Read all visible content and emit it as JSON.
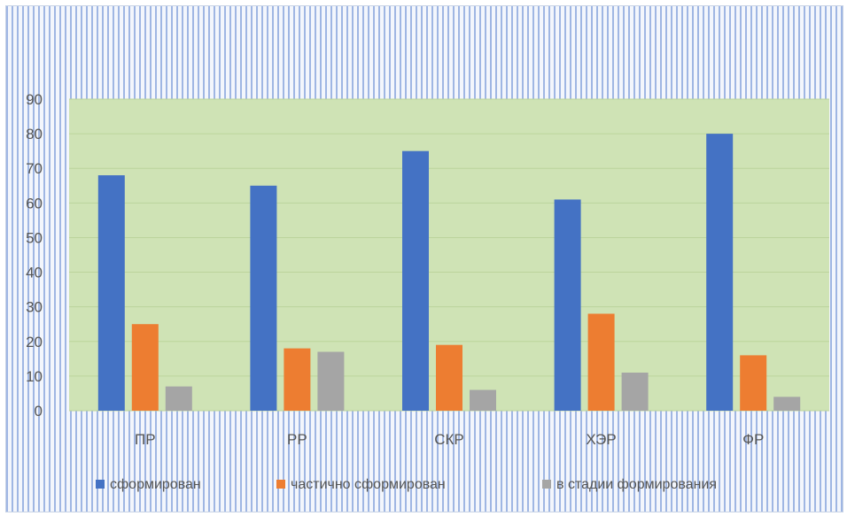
{
  "chart_data": {
    "type": "bar",
    "categories": [
      "ПР",
      "РР",
      "СКР",
      "ХЭР",
      "ФР"
    ],
    "series": [
      {
        "name": "сформирован",
        "values": [
          68,
          65,
          75,
          61,
          80
        ],
        "color": "#4472c4"
      },
      {
        "name": "частично сформирован",
        "values": [
          25,
          18,
          19,
          28,
          16
        ],
        "color": "#ed7d31"
      },
      {
        "name": "в стадии формирования",
        "values": [
          7,
          17,
          6,
          11,
          4
        ],
        "color": "#a5a5a5"
      }
    ],
    "ylim": [
      0,
      90
    ],
    "yticks": [
      "0",
      "10",
      "20",
      "30",
      "40",
      "50",
      "60",
      "70",
      "80",
      "90"
    ],
    "grid": true,
    "plot_background": "#cfe3b5",
    "legend_position": "bottom"
  }
}
